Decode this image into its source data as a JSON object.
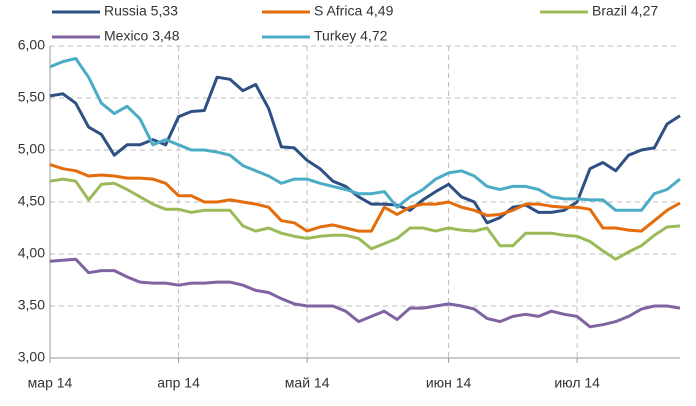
{
  "chart_data": {
    "type": "line",
    "categories": [
      "мар 14",
      null,
      null,
      null,
      null,
      null,
      null,
      null,
      null,
      null,
      "апр 14",
      null,
      null,
      null,
      null,
      null,
      null,
      null,
      null,
      null,
      "май 14",
      null,
      null,
      null,
      null,
      null,
      null,
      null,
      null,
      null,
      null,
      "июн 14",
      null,
      null,
      null,
      null,
      null,
      null,
      null,
      null,
      null,
      "июл 14",
      null,
      null,
      null,
      null,
      null,
      null,
      null,
      null
    ],
    "series": [
      {
        "name": "Russia 5,33",
        "color": "#2f5083",
        "values": [
          5.52,
          5.54,
          5.45,
          5.22,
          5.15,
          4.95,
          5.05,
          5.05,
          5.1,
          5.05,
          5.32,
          5.37,
          5.38,
          5.7,
          5.68,
          5.57,
          5.63,
          5.4,
          5.03,
          5.02,
          4.9,
          4.82,
          4.7,
          4.65,
          4.55,
          4.48,
          4.48,
          4.47,
          4.42,
          4.52,
          4.6,
          4.67,
          4.55,
          4.5,
          4.3,
          4.35,
          4.45,
          4.47,
          4.4,
          4.4,
          4.42,
          4.5,
          4.82,
          4.88,
          4.8,
          4.95,
          5.0,
          5.02,
          5.25,
          5.33
        ]
      },
      {
        "name": "S Africa 4,49",
        "color": "#e46c0a",
        "values": [
          4.86,
          4.82,
          4.8,
          4.75,
          4.76,
          4.75,
          4.73,
          4.73,
          4.72,
          4.68,
          4.56,
          4.56,
          4.5,
          4.5,
          4.52,
          4.5,
          4.48,
          4.45,
          4.32,
          4.3,
          4.22,
          4.26,
          4.28,
          4.25,
          4.22,
          4.22,
          4.45,
          4.38,
          4.45,
          4.48,
          4.48,
          4.5,
          4.45,
          4.42,
          4.37,
          4.38,
          4.42,
          4.48,
          4.48,
          4.46,
          4.45,
          4.45,
          4.43,
          4.25,
          4.25,
          4.23,
          4.22,
          4.32,
          4.42,
          4.49
        ]
      },
      {
        "name": "Brazil 4,27",
        "color": "#9bbb59",
        "values": [
          4.7,
          4.72,
          4.7,
          4.52,
          4.67,
          4.68,
          4.62,
          4.55,
          4.48,
          4.43,
          4.43,
          4.4,
          4.42,
          4.42,
          4.42,
          4.27,
          4.22,
          4.25,
          4.2,
          4.17,
          4.15,
          4.17,
          4.18,
          4.18,
          4.15,
          4.05,
          4.1,
          4.15,
          4.25,
          4.25,
          4.22,
          4.25,
          4.23,
          4.22,
          4.25,
          4.08,
          4.08,
          4.2,
          4.2,
          4.2,
          4.18,
          4.17,
          4.12,
          4.03,
          3.95,
          4.02,
          4.08,
          4.18,
          4.26,
          4.27
        ]
      },
      {
        "name": "Mexico 3,48",
        "color": "#8064a2",
        "values": [
          3.93,
          3.94,
          3.95,
          3.82,
          3.84,
          3.84,
          3.78,
          3.73,
          3.72,
          3.72,
          3.7,
          3.72,
          3.72,
          3.73,
          3.73,
          3.7,
          3.65,
          3.63,
          3.57,
          3.52,
          3.5,
          3.5,
          3.5,
          3.45,
          3.35,
          3.4,
          3.45,
          3.37,
          3.48,
          3.48,
          3.5,
          3.52,
          3.5,
          3.47,
          3.38,
          3.35,
          3.4,
          3.42,
          3.4,
          3.45,
          3.42,
          3.4,
          3.3,
          3.32,
          3.35,
          3.4,
          3.47,
          3.5,
          3.5,
          3.48
        ]
      },
      {
        "name": "Turkey 4,72",
        "color": "#4bacc6",
        "values": [
          5.8,
          5.85,
          5.88,
          5.7,
          5.45,
          5.35,
          5.42,
          5.3,
          5.05,
          5.1,
          5.05,
          5.0,
          5.0,
          4.98,
          4.95,
          4.85,
          4.8,
          4.75,
          4.68,
          4.72,
          4.72,
          4.68,
          4.65,
          4.62,
          4.58,
          4.58,
          4.6,
          4.45,
          4.55,
          4.62,
          4.72,
          4.78,
          4.8,
          4.75,
          4.65,
          4.62,
          4.65,
          4.65,
          4.62,
          4.55,
          4.53,
          4.53,
          4.52,
          4.52,
          4.42,
          4.42,
          4.42,
          4.58,
          4.62,
          4.72
        ]
      }
    ],
    "ylim": [
      3,
      6
    ],
    "yticks": [
      {
        "value": 3,
        "label": "3,00"
      },
      {
        "value": 3.5,
        "label": "3,50"
      },
      {
        "value": 4,
        "label": "4,00"
      },
      {
        "value": 4.5,
        "label": "4,50"
      },
      {
        "value": 5,
        "label": "5,00"
      },
      {
        "value": 5.5,
        "label": "5,50"
      },
      {
        "value": 6,
        "label": "6,00"
      }
    ],
    "grid": true
  }
}
